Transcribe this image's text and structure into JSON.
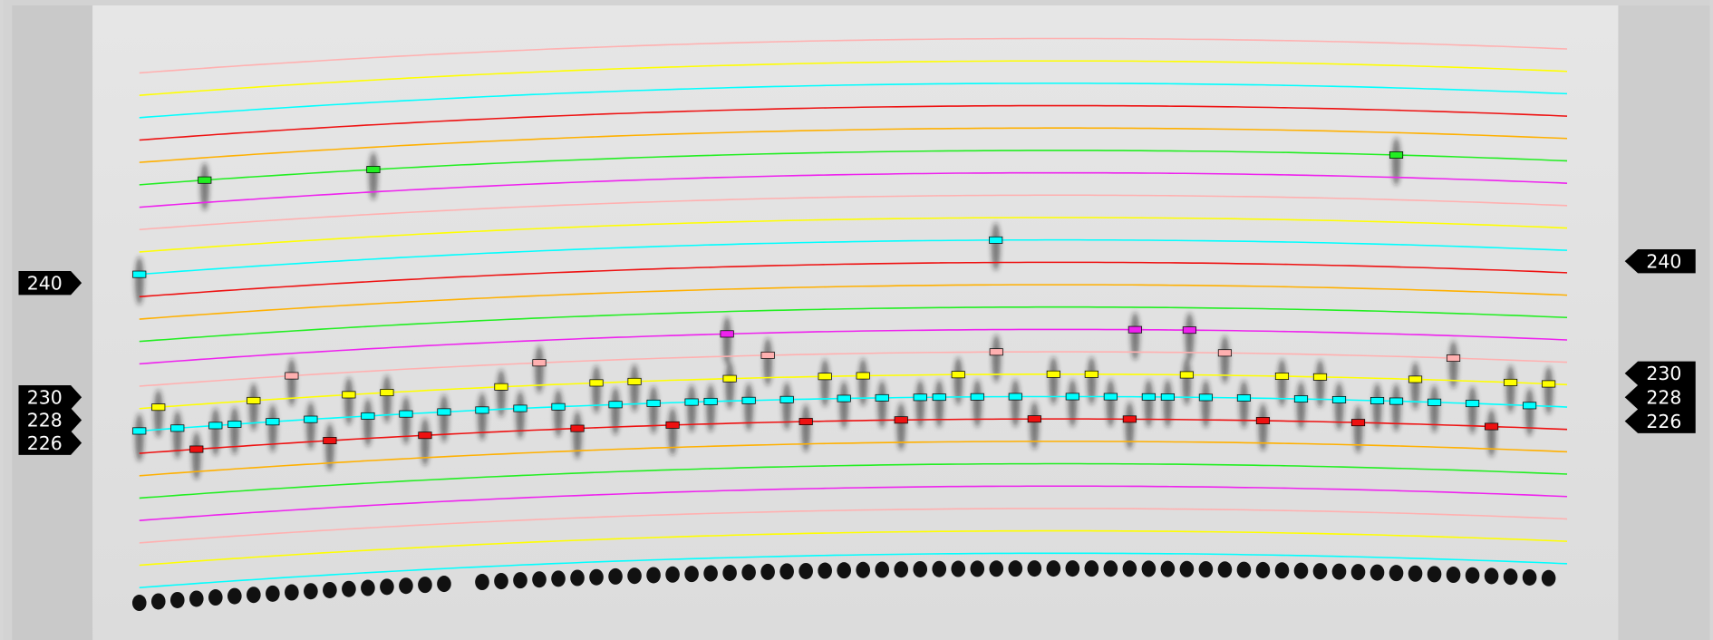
{
  "left_markers": [
    240,
    230,
    228,
    226
  ],
  "right_markers": [
    240,
    230,
    228,
    226
  ]
}
